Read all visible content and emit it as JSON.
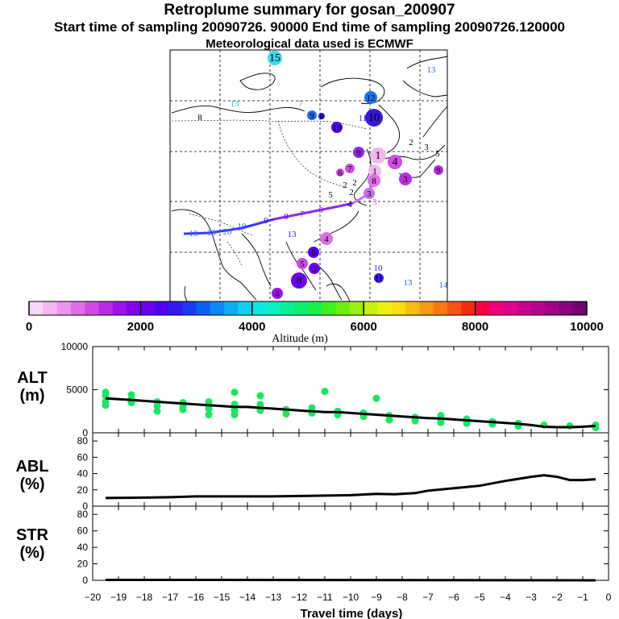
{
  "header": {
    "title": "Retroplume summary for gosan_200907",
    "sampling": "Start time of sampling 20090726. 90000     End time of sampling 20090726.120000",
    "met": "Meteorological data used is ECMWF"
  },
  "colorbar": {
    "label": "Altitude (m)",
    "ticks": [
      "0",
      "2000",
      "4000",
      "6000",
      "8000",
      "10000"
    ],
    "colors": [
      "#f7d6f7",
      "#f2b6f2",
      "#ec94ec",
      "#e06ee8",
      "#d04ae6",
      "#bb2ae6",
      "#a010ec",
      "#8400f0",
      "#6a00f2",
      "#5000f0",
      "#3418f0",
      "#1838f2",
      "#0a60f2",
      "#0a88f2",
      "#0aaef0",
      "#0ad2ee",
      "#0ae8e2",
      "#0af0c0",
      "#0af09a",
      "#0af070",
      "#18f048",
      "#3ef020",
      "#6af010",
      "#9af010",
      "#c8f010",
      "#ecf010",
      "#f8de10",
      "#f8bc10",
      "#f89a10",
      "#f87810",
      "#f85410",
      "#f82a10",
      "#f80040",
      "#f0007a",
      "#e0008c",
      "#cc0090",
      "#b80090",
      "#a00088",
      "#880080",
      "#700070"
    ]
  },
  "map": {
    "labels": [
      "15",
      "13",
      "8",
      "7",
      "9",
      "6",
      "13",
      "12",
      "10",
      "11",
      "10",
      "9",
      "1",
      "2",
      "3",
      "5",
      "4",
      "3",
      "6",
      "7",
      "2",
      "1",
      "8",
      "3",
      "9",
      "2",
      "18",
      "19",
      "20",
      "10",
      "9",
      "8",
      "7",
      "6",
      "5",
      "4",
      "3",
      "2",
      "4",
      "6",
      "5",
      "3",
      "4",
      "8",
      "10",
      "11",
      "13",
      "14",
      "13"
    ]
  },
  "chart_data": [
    {
      "type": "line",
      "title": "ALT (m)",
      "ylabel": "ALT\n(m)",
      "x": [
        -19.5,
        -19,
        -18.5,
        -18,
        -17.5,
        -17,
        -16.5,
        -16,
        -15.5,
        -15,
        -14.5,
        -14,
        -13.5,
        -13,
        -12.5,
        -12,
        -11.5,
        -11,
        -10.5,
        -10,
        -9.5,
        -9,
        -8.5,
        -8,
        -7.5,
        -7,
        -6.5,
        -6,
        -5.5,
        -5,
        -4.5,
        -4,
        -3.5,
        -3,
        -2.5,
        -2,
        -1.5,
        -1,
        -0.5
      ],
      "series": [
        {
          "name": "mean altitude",
          "values": [
            4000,
            3900,
            3800,
            3700,
            3600,
            3500,
            3400,
            3300,
            3200,
            3100,
            3000,
            3000,
            2900,
            2800,
            2700,
            2600,
            2500,
            2400,
            2400,
            2300,
            2200,
            2100,
            2000,
            1900,
            1800,
            1700,
            1650,
            1550,
            1450,
            1350,
            1250,
            1150,
            1050,
            900,
            700,
            650,
            650,
            700,
            800
          ]
        }
      ],
      "scatter_x": [
        -19.5,
        -19.5,
        -19.5,
        -19.5,
        -18.5,
        -18.5,
        -18.5,
        -17.5,
        -17.5,
        -17.5,
        -16.5,
        -16.5,
        -16.5,
        -15.5,
        -15.5,
        -15.5,
        -15.5,
        -14.5,
        -14.5,
        -14.5,
        -14.5,
        -13.5,
        -13.5,
        -13.5,
        -12.5,
        -12.5,
        -11.5,
        -11.5,
        -11,
        -10.5,
        -10.5,
        -9.5,
        -9.5,
        -9,
        -8.5,
        -8.5,
        -7.5,
        -7.5,
        -6.5,
        -6.5,
        -6.5,
        -5.5,
        -5.5,
        -4.5,
        -4.5,
        -3.5,
        -3.5,
        -2.5,
        -1.5,
        -0.5,
        -0.5
      ],
      "scatter_y": [
        4700,
        4300,
        3600,
        3200,
        4400,
        3900,
        3500,
        3600,
        3100,
        2500,
        3500,
        3100,
        2700,
        3600,
        3200,
        2800,
        2100,
        4700,
        3300,
        2600,
        2100,
        4300,
        3300,
        2600,
        2700,
        2200,
        2900,
        2300,
        4800,
        2500,
        2100,
        2300,
        1900,
        4000,
        2000,
        1500,
        1800,
        1400,
        2000,
        1600,
        1200,
        1600,
        1100,
        1300,
        1000,
        1100,
        800,
        900,
        800,
        900,
        600
      ],
      "ylim": [
        0,
        10000
      ],
      "yticks": [
        "0",
        "5000",
        "10000"
      ]
    },
    {
      "type": "line",
      "title": "ABL (%)",
      "ylabel": "ABL\n(%)",
      "x": [
        -19.5,
        -18,
        -17,
        -16,
        -15,
        -14,
        -13,
        -12,
        -11,
        -10,
        -9,
        -8.3,
        -7.5,
        -7,
        -6,
        -5,
        -4,
        -3,
        -2.5,
        -2,
        -1.5,
        -1,
        -0.5
      ],
      "series": [
        {
          "name": "ABL fraction",
          "values": [
            10,
            10.5,
            11,
            12,
            12,
            12,
            12,
            12.5,
            13,
            13.5,
            15,
            14.5,
            16,
            19,
            22,
            25,
            31,
            36,
            38,
            36,
            32,
            32,
            33
          ]
        }
      ],
      "ylim": [
        0,
        90
      ],
      "yticks": [
        "0",
        "20",
        "40",
        "60",
        "80"
      ]
    },
    {
      "type": "line",
      "title": "STR (%)",
      "ylabel": "STR\n(%)",
      "x": [
        -19.5,
        -15,
        -0.5
      ],
      "series": [
        {
          "name": "stratosphere fraction",
          "values": [
            0.5,
            0.5,
            0
          ]
        }
      ],
      "ylim": [
        0,
        90
      ],
      "yticks": [
        "0",
        "20",
        "40",
        "60",
        "80"
      ]
    }
  ],
  "xaxis": {
    "label": "Travel time (days)",
    "ticks": [
      "−20",
      "−19",
      "−18",
      "−17",
      "−16",
      "−15",
      "−14",
      "−13",
      "−12",
      "−11",
      "−10",
      "−9",
      "−8",
      "−7",
      "−6",
      "−5",
      "−4",
      "−3",
      "−2",
      "−1",
      "0"
    ]
  }
}
